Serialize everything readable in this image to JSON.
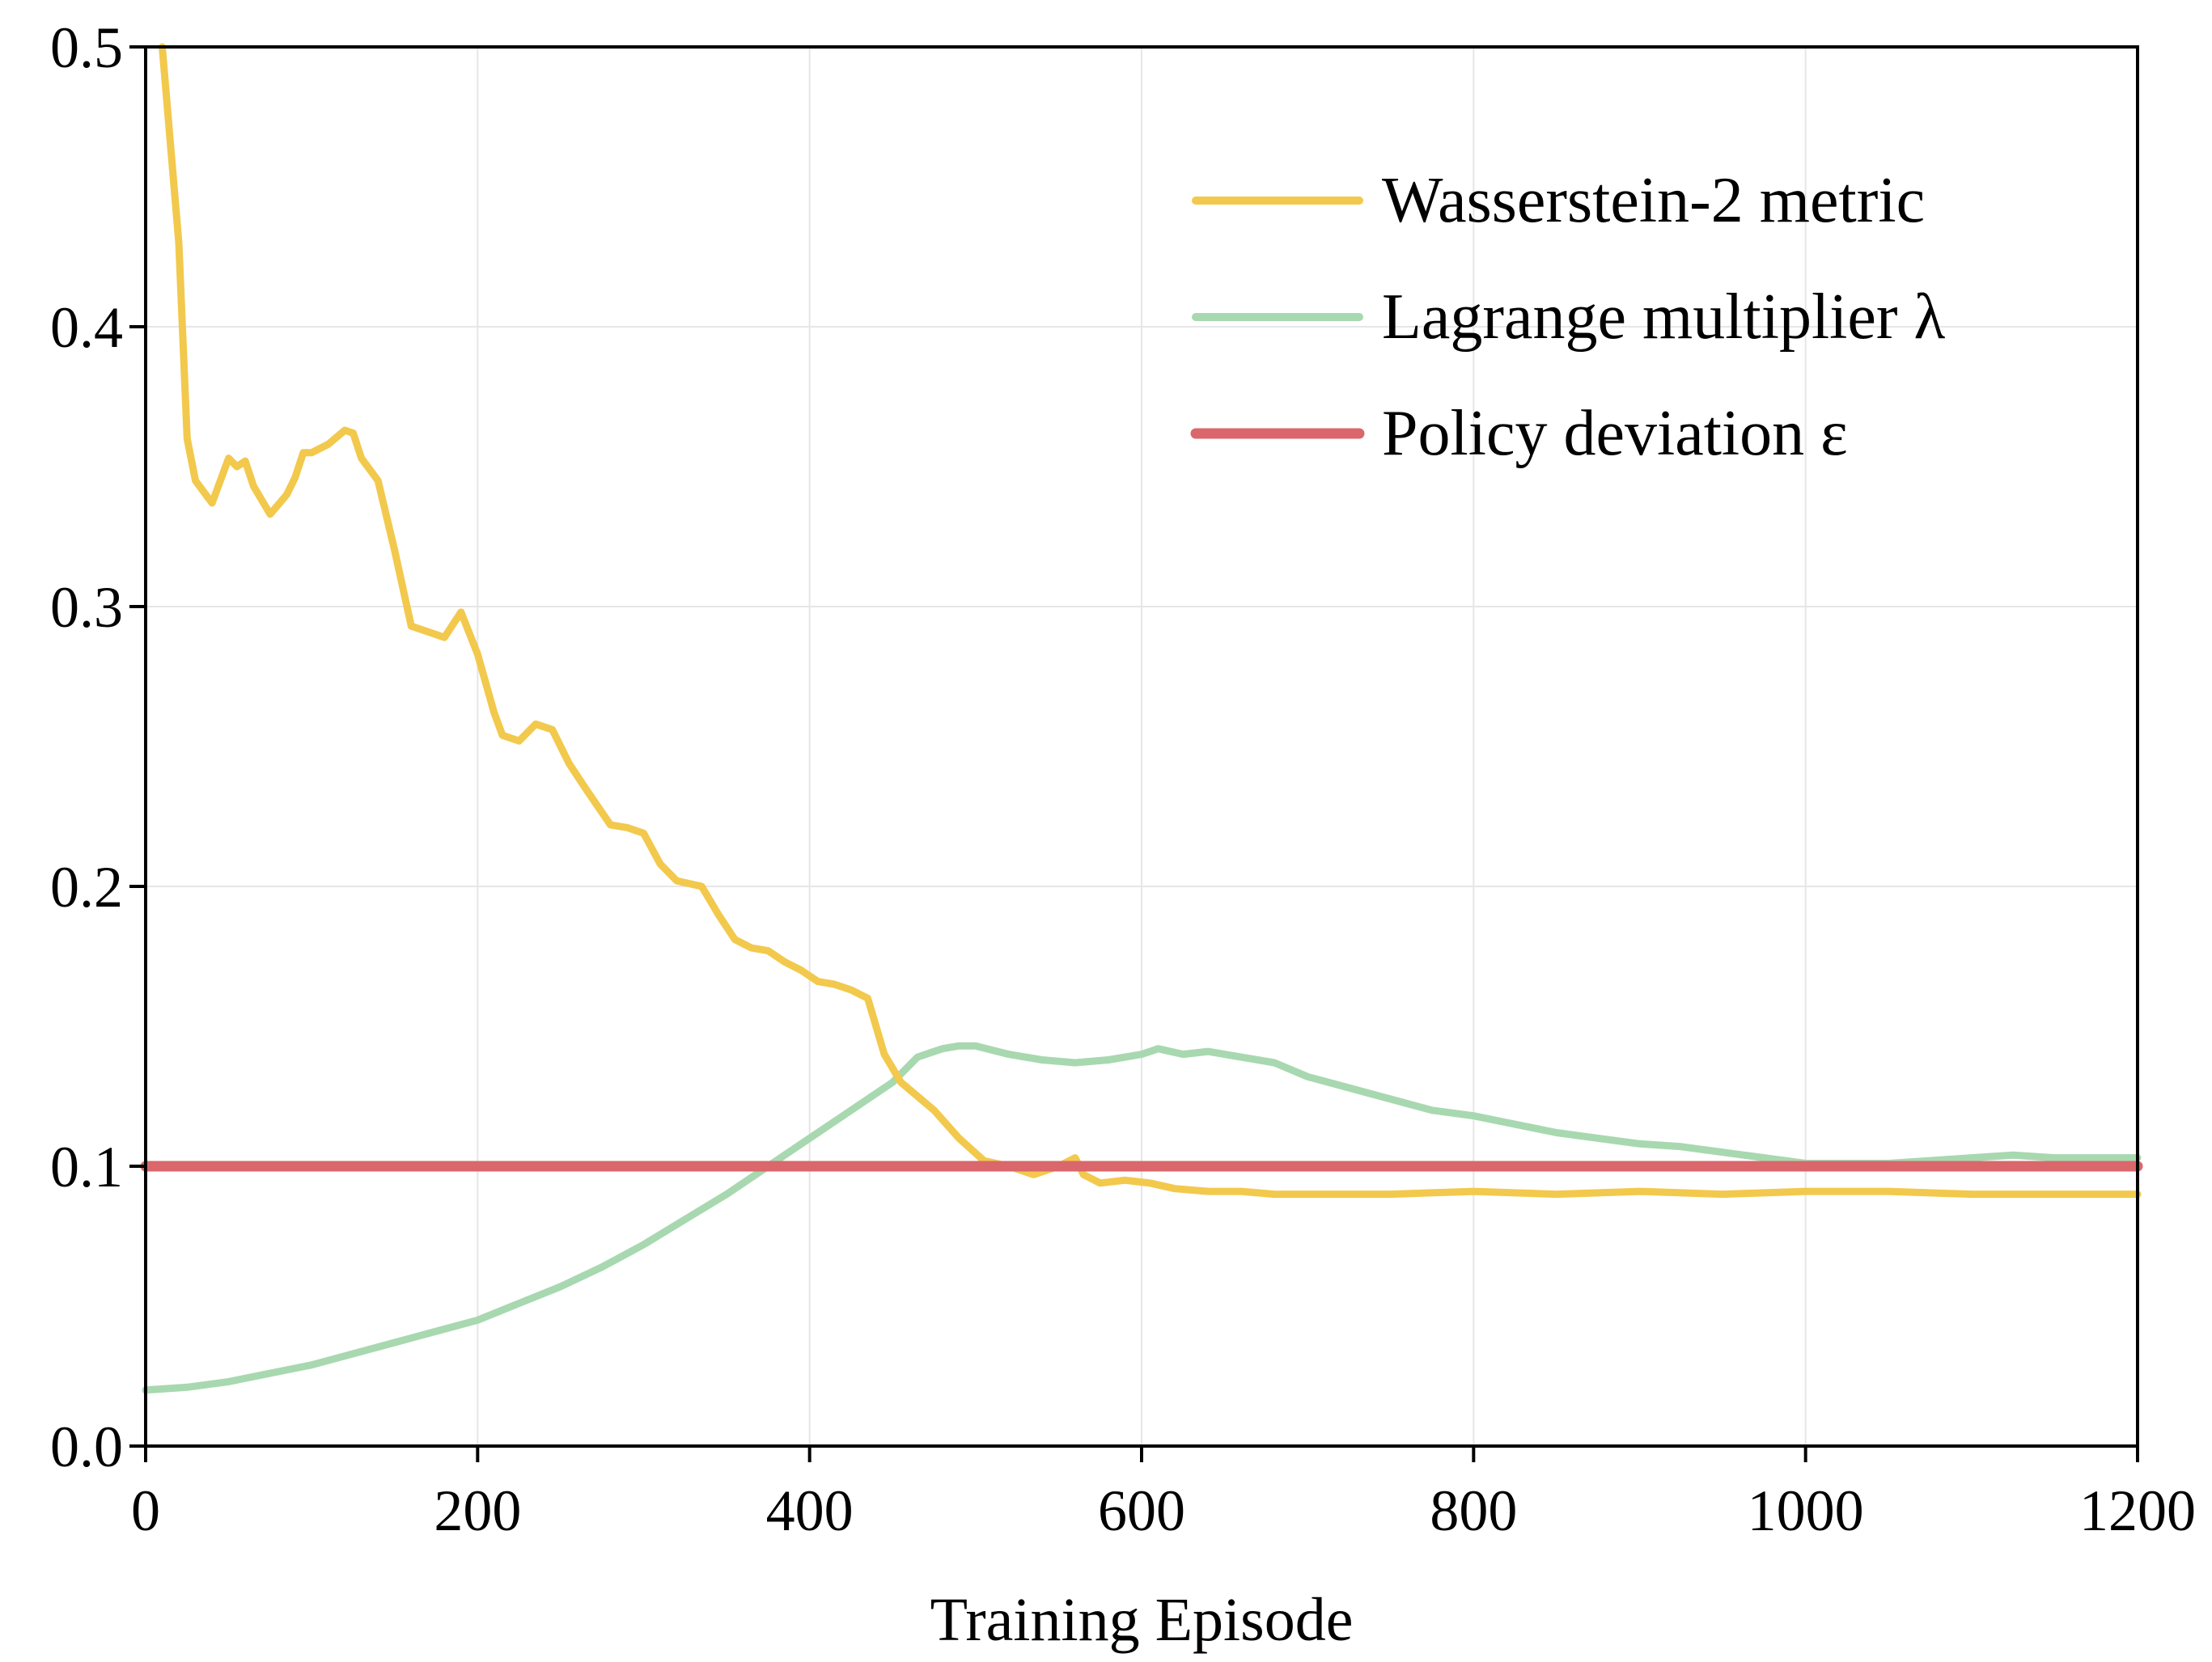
{
  "chart_data": {
    "type": "line",
    "title": "",
    "xlabel": "Training Episode",
    "ylabel": "",
    "xlim": [
      0,
      1200
    ],
    "ylim": [
      0,
      0.5
    ],
    "xticks": [
      0,
      200,
      400,
      600,
      800,
      1000,
      1200
    ],
    "xtick_labels": [
      "0",
      "200",
      "400",
      "600",
      "800",
      "1000",
      "1200"
    ],
    "yticks": [
      0,
      0.1,
      0.2,
      0.3,
      0.4,
      0.5
    ],
    "ytick_labels": [
      "0.0",
      "0.1",
      "0.2",
      "0.3",
      "0.4",
      "0.5"
    ],
    "grid": true,
    "legend_position": "top-right",
    "series": [
      {
        "name": "Wasserstein-2 metric",
        "color": "#f2c94c",
        "x": [
          10,
          20,
          25,
          30,
          40,
          50,
          55,
          60,
          65,
          75,
          85,
          90,
          95,
          100,
          110,
          120,
          125,
          130,
          140,
          150,
          160,
          170,
          180,
          190,
          200,
          210,
          215,
          225,
          235,
          245,
          255,
          265,
          280,
          290,
          300,
          310,
          320,
          335,
          345,
          355,
          365,
          375,
          385,
          395,
          405,
          415,
          425,
          435,
          445,
          455,
          465,
          475,
          490,
          505,
          520,
          535,
          550,
          560,
          565,
          575,
          590,
          605,
          620,
          640,
          660,
          680,
          700,
          750,
          800,
          850,
          900,
          950,
          1000,
          1050,
          1100,
          1150,
          1200
        ],
        "y": [
          0.5,
          0.43,
          0.36,
          0.345,
          0.337,
          0.353,
          0.35,
          0.352,
          0.343,
          0.333,
          0.34,
          0.346,
          0.355,
          0.355,
          0.358,
          0.363,
          0.362,
          0.353,
          0.345,
          0.32,
          0.293,
          0.291,
          0.289,
          0.298,
          0.283,
          0.262,
          0.254,
          0.252,
          0.258,
          0.256,
          0.244,
          0.235,
          0.222,
          0.221,
          0.219,
          0.208,
          0.202,
          0.2,
          0.19,
          0.181,
          0.178,
          0.177,
          0.173,
          0.17,
          0.166,
          0.165,
          0.163,
          0.16,
          0.14,
          0.13,
          0.125,
          0.12,
          0.11,
          0.102,
          0.1,
          0.097,
          0.1,
          0.103,
          0.097,
          0.094,
          0.095,
          0.094,
          0.092,
          0.091,
          0.091,
          0.09,
          0.09,
          0.09,
          0.091,
          0.09,
          0.091,
          0.09,
          0.091,
          0.091,
          0.09,
          0.09,
          0.09
        ]
      },
      {
        "name": "Lagrange multiplier λ",
        "color": "#a8d8b0",
        "x": [
          0,
          25,
          50,
          75,
          100,
          125,
          150,
          175,
          200,
          225,
          250,
          275,
          300,
          325,
          350,
          375,
          400,
          425,
          450,
          465,
          480,
          490,
          500,
          520,
          540,
          560,
          580,
          600,
          610,
          625,
          640,
          660,
          680,
          700,
          725,
          750,
          775,
          800,
          825,
          850,
          875,
          900,
          925,
          950,
          975,
          1000,
          1025,
          1050,
          1075,
          1100,
          1125,
          1150,
          1175,
          1200
        ],
        "y": [
          0.02,
          0.021,
          0.023,
          0.026,
          0.029,
          0.033,
          0.037,
          0.041,
          0.045,
          0.051,
          0.057,
          0.064,
          0.072,
          0.081,
          0.09,
          0.1,
          0.11,
          0.12,
          0.13,
          0.139,
          0.142,
          0.143,
          0.143,
          0.14,
          0.138,
          0.137,
          0.138,
          0.14,
          0.142,
          0.14,
          0.141,
          0.139,
          0.137,
          0.132,
          0.128,
          0.124,
          0.12,
          0.118,
          0.115,
          0.112,
          0.11,
          0.108,
          0.107,
          0.105,
          0.103,
          0.101,
          0.101,
          0.101,
          0.102,
          0.103,
          0.104,
          0.103,
          0.103,
          0.103
        ]
      },
      {
        "name": "Policy deviation ε",
        "color": "#d9676b",
        "x": [
          0,
          1200
        ],
        "y": [
          0.1,
          0.1
        ]
      }
    ]
  }
}
